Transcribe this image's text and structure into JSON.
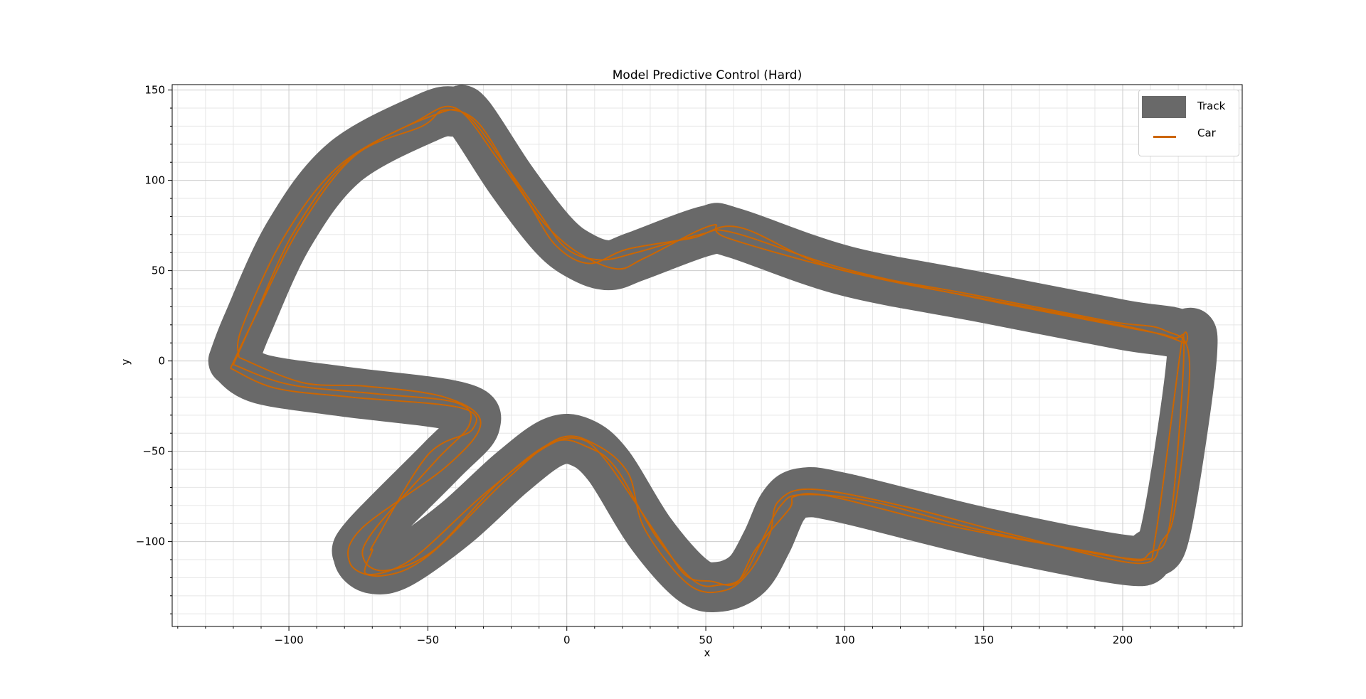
{
  "chart_data": {
    "type": "line",
    "title": "Model Predictive Control (Hard)",
    "xlabel": "x",
    "ylabel": "y",
    "xlim": [
      -142,
      243
    ],
    "ylim": [
      -147,
      153
    ],
    "xticks": [
      -100,
      -50,
      0,
      50,
      100,
      150,
      200
    ],
    "xtick_labels": [
      "−100",
      "−50",
      "0",
      "50",
      "100",
      "150",
      "200"
    ],
    "yticks": [
      -100,
      -50,
      0,
      50,
      100,
      150
    ],
    "ytick_labels": [
      "−100",
      "−50",
      "0",
      "50",
      "100",
      "150"
    ],
    "grid": {
      "major": true,
      "minor": true,
      "minor_step": 10
    },
    "legend_position": "top-right",
    "colors": {
      "track": "#696969",
      "car": "#cc6600",
      "grid_major": "#cccccc",
      "grid_minor": "#e6e6e6"
    },
    "series": [
      {
        "name": "Track",
        "kind": "band",
        "width": 9,
        "centerline": [
          [
            -120,
            0
          ],
          [
            -110,
            -10
          ],
          [
            -80,
            -17
          ],
          [
            -40,
            -25
          ],
          [
            -33,
            -35
          ],
          [
            -45,
            -55
          ],
          [
            -72,
            -97
          ],
          [
            -75,
            -108
          ],
          [
            -70,
            -115
          ],
          [
            -60,
            -112
          ],
          [
            -40,
            -90
          ],
          [
            -20,
            -62
          ],
          [
            -5,
            -45
          ],
          [
            5,
            -45
          ],
          [
            15,
            -58
          ],
          [
            30,
            -95
          ],
          [
            45,
            -121
          ],
          [
            55,
            -125
          ],
          [
            65,
            -118
          ],
          [
            72,
            -100
          ],
          [
            78,
            -80
          ],
          [
            85,
            -73
          ],
          [
            100,
            -76
          ],
          [
            150,
            -95
          ],
          [
            200,
            -110
          ],
          [
            210,
            -107
          ],
          [
            216,
            -90
          ],
          [
            225,
            5
          ],
          [
            220,
            15
          ],
          [
            200,
            20
          ],
          [
            150,
            35
          ],
          [
            100,
            50
          ],
          [
            60,
            71
          ],
          [
            50,
            72
          ],
          [
            25,
            58
          ],
          [
            15,
            53
          ],
          [
            5,
            58
          ],
          [
            -5,
            70
          ],
          [
            -20,
            100
          ],
          [
            -35,
            135
          ],
          [
            -40,
            138
          ],
          [
            -50,
            135
          ],
          [
            -80,
            110
          ],
          [
            -100,
            70
          ],
          [
            -115,
            20
          ],
          [
            -120,
            0
          ]
        ]
      },
      {
        "name": "Car",
        "kind": "line",
        "laps": [
          [
            [
              -120,
              -2
            ],
            [
              -100,
              -13
            ],
            [
              -70,
              -18
            ],
            [
              -40,
              -23
            ],
            [
              -35,
              -35
            ],
            [
              -47,
              -55
            ],
            [
              -70,
              -95
            ],
            [
              -73,
              -110
            ],
            [
              -65,
              -116
            ],
            [
              -48,
              -105
            ],
            [
              -25,
              -68
            ],
            [
              -5,
              -45
            ],
            [
              8,
              -48
            ],
            [
              18,
              -60
            ],
            [
              32,
              -97
            ],
            [
              46,
              -122
            ],
            [
              55,
              -124
            ],
            [
              63,
              -120
            ],
            [
              70,
              -100
            ],
            [
              77,
              -80
            ],
            [
              85,
              -74
            ],
            [
              110,
              -78
            ],
            [
              150,
              -94
            ],
            [
              200,
              -109
            ],
            [
              210,
              -106
            ],
            [
              217,
              -90
            ],
            [
              222,
              5
            ],
            [
              218,
              13
            ],
            [
              200,
              19
            ],
            [
              150,
              34
            ],
            [
              100,
              51
            ],
            [
              60,
              71
            ],
            [
              48,
              70
            ],
            [
              25,
              60
            ],
            [
              12,
              56
            ],
            [
              0,
              62
            ],
            [
              -10,
              82
            ],
            [
              -22,
              108
            ],
            [
              -36,
              136
            ],
            [
              -48,
              136
            ],
            [
              -78,
              112
            ],
            [
              -98,
              72
            ],
            [
              -113,
              22
            ],
            [
              -120,
              -2
            ]
          ],
          [
            [
              -118,
              2
            ],
            [
              -95,
              -12
            ],
            [
              -72,
              -14
            ],
            [
              -44,
              -20
            ],
            [
              -31,
              -34
            ],
            [
              -43,
              -58
            ],
            [
              -74,
              -93
            ],
            [
              -78,
              -112
            ],
            [
              -67,
              -119
            ],
            [
              -50,
              -108
            ],
            [
              -22,
              -66
            ],
            [
              -3,
              -43
            ],
            [
              10,
              -46
            ],
            [
              22,
              -62
            ],
            [
              28,
              -93
            ],
            [
              44,
              -124
            ],
            [
              57,
              -127
            ],
            [
              66,
              -116
            ],
            [
              73,
              -96
            ],
            [
              76,
              -78
            ],
            [
              88,
              -71
            ],
            [
              120,
              -80
            ],
            [
              160,
              -96
            ],
            [
              205,
              -112
            ],
            [
              214,
              -100
            ],
            [
              219,
              -80
            ],
            [
              224,
              0
            ],
            [
              215,
              17
            ],
            [
              195,
              22
            ],
            [
              145,
              37
            ],
            [
              95,
              52
            ],
            [
              62,
              74
            ],
            [
              45,
              68
            ],
            [
              22,
              62
            ],
            [
              8,
              54
            ],
            [
              -4,
              64
            ],
            [
              -14,
              88
            ],
            [
              -25,
              112
            ],
            [
              -40,
              140
            ],
            [
              -55,
              132
            ],
            [
              -82,
              108
            ],
            [
              -102,
              68
            ],
            [
              -117,
              18
            ],
            [
              -118,
              2
            ]
          ],
          [
            [
              -121,
              -4
            ],
            [
              -105,
              -15
            ],
            [
              -78,
              -20
            ],
            [
              -38,
              -26
            ],
            [
              -34,
              -38
            ],
            [
              -50,
              -52
            ],
            [
              -69,
              -100
            ],
            [
              -70,
              -105
            ],
            [
              -72,
              -118
            ],
            [
              -56,
              -110
            ],
            [
              -30,
              -74
            ],
            [
              -8,
              -48
            ],
            [
              4,
              -43
            ],
            [
              14,
              -55
            ],
            [
              34,
              -100
            ],
            [
              43,
              -119
            ],
            [
              52,
              -122
            ],
            [
              61,
              -123
            ],
            [
              68,
              -104
            ],
            [
              80,
              -82
            ],
            [
              82,
              -75
            ],
            [
              95,
              -75
            ],
            [
              140,
              -92
            ],
            [
              190,
              -106
            ],
            [
              208,
              -110
            ],
            [
              212,
              -95
            ],
            [
              221,
              8
            ],
            [
              222,
              10
            ],
            [
              205,
              18
            ],
            [
              155,
              33
            ],
            [
              105,
              48
            ],
            [
              58,
              68
            ],
            [
              52,
              75
            ],
            [
              28,
              57
            ],
            [
              18,
              51
            ],
            [
              4,
              60
            ],
            [
              -8,
              76
            ],
            [
              -18,
              98
            ],
            [
              -32,
              132
            ],
            [
              -44,
              139
            ],
            [
              -52,
              130
            ],
            [
              -76,
              114
            ],
            [
              -96,
              74
            ],
            [
              -112,
              25
            ],
            [
              -121,
              -4
            ]
          ]
        ]
      }
    ],
    "legend": [
      "Track",
      "Car"
    ]
  }
}
